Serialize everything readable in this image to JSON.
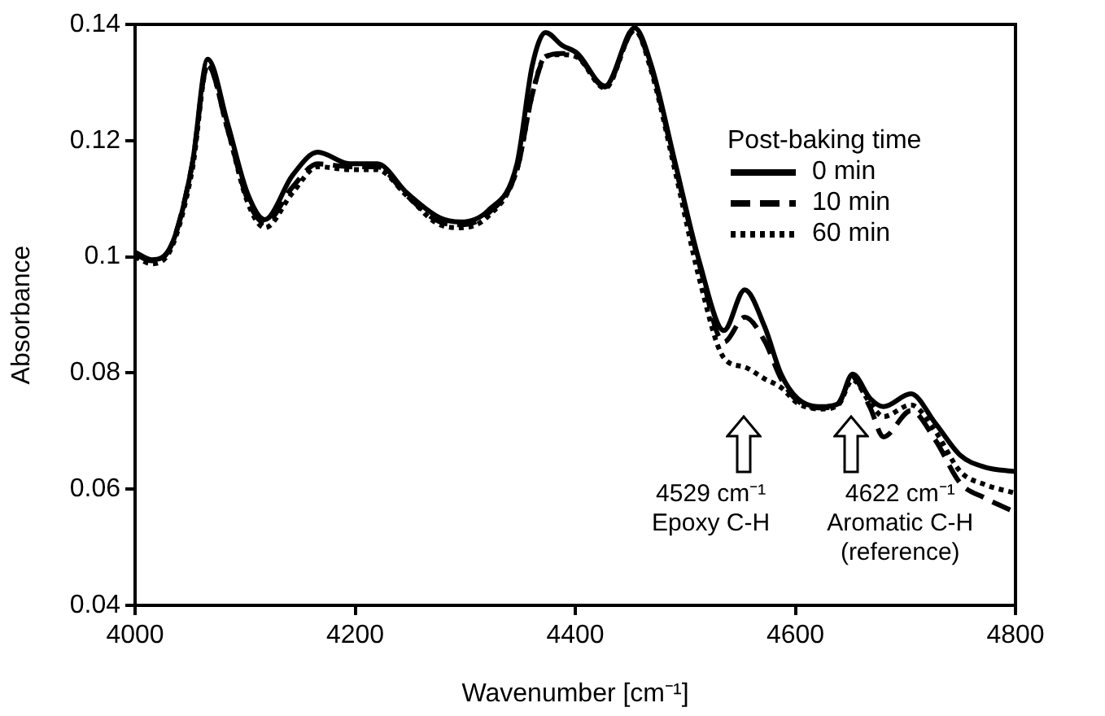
{
  "chart_data": {
    "type": "line",
    "xlabel": "Wavenumber [cm⁻¹]",
    "ylabel": "Absorbance",
    "legend_title": "Post-baking time",
    "legend": "top right",
    "grid": false,
    "marker": "none",
    "xlim": [
      4000,
      4800
    ],
    "xticks": [
      4000,
      4200,
      4400,
      4600,
      4800
    ],
    "ylim": [
      0.04,
      0.14
    ],
    "yticks": [
      0.04,
      0.06,
      0.08,
      0.1,
      0.12,
      0.14
    ],
    "x": [
      4000,
      4015,
      4033,
      4052,
      4066,
      4084,
      4102,
      4118,
      4143,
      4166,
      4195,
      4220,
      4247,
      4277,
      4296,
      4321,
      4347,
      4361,
      4373,
      4388,
      4402,
      4427,
      4454,
      4469,
      4491,
      4513,
      4535,
      4554,
      4572,
      4587,
      4602,
      4624,
      4639,
      4652,
      4668,
      4680,
      4705,
      4727,
      4750,
      4772,
      4800
    ],
    "series": [
      {
        "name": "0 min",
        "color": "#000000",
        "line_style": "solid",
        "values": [
          0.1008,
          0.0995,
          0.102,
          0.116,
          0.134,
          0.123,
          0.111,
          0.1064,
          0.114,
          0.118,
          0.116,
          0.116,
          0.111,
          0.1067,
          0.106,
          0.108,
          0.116,
          0.133,
          0.1386,
          0.1364,
          0.135,
          0.1294,
          0.1394,
          0.133,
          0.116,
          0.099,
          0.0873,
          0.0943,
          0.088,
          0.0798,
          0.0756,
          0.0742,
          0.0747,
          0.0798,
          0.0756,
          0.0742,
          0.0764,
          0.0714,
          0.0658,
          0.0638,
          0.063
        ]
      },
      {
        "name": "10 min",
        "color": "#000000",
        "line_style": "dashed",
        "values": [
          0.1005,
          0.0993,
          0.102,
          0.116,
          0.133,
          0.122,
          0.11,
          0.1058,
          0.112,
          0.116,
          0.1155,
          0.1155,
          0.1105,
          0.106,
          0.1055,
          0.1075,
          0.115,
          0.128,
          0.1344,
          0.135,
          0.1345,
          0.1292,
          0.139,
          0.1325,
          0.1155,
          0.0985,
          0.0853,
          0.0896,
          0.0855,
          0.079,
          0.0752,
          0.074,
          0.0748,
          0.0792,
          0.074,
          0.069,
          0.0735,
          0.0685,
          0.061,
          0.0585,
          0.056
        ]
      },
      {
        "name": "60 min",
        "color": "#000000",
        "line_style": "dotted",
        "values": [
          0.1,
          0.0988,
          0.1015,
          0.115,
          0.133,
          0.122,
          0.1095,
          0.105,
          0.111,
          0.1155,
          0.115,
          0.115,
          0.1105,
          0.1055,
          0.105,
          0.107,
          0.115,
          0.128,
          0.1345,
          0.1348,
          0.1343,
          0.129,
          0.139,
          0.132,
          0.1145,
          0.096,
          0.0826,
          0.081,
          0.079,
          0.0775,
          0.0748,
          0.0738,
          0.0745,
          0.0788,
          0.0748,
          0.0725,
          0.0745,
          0.07,
          0.063,
          0.0608,
          0.0593
        ]
      }
    ],
    "annotations": [
      "4529 cm⁻¹\nEpoxy C-H",
      "4622 cm⁻¹\nAromatic C-H\n(reference)"
    ]
  }
}
